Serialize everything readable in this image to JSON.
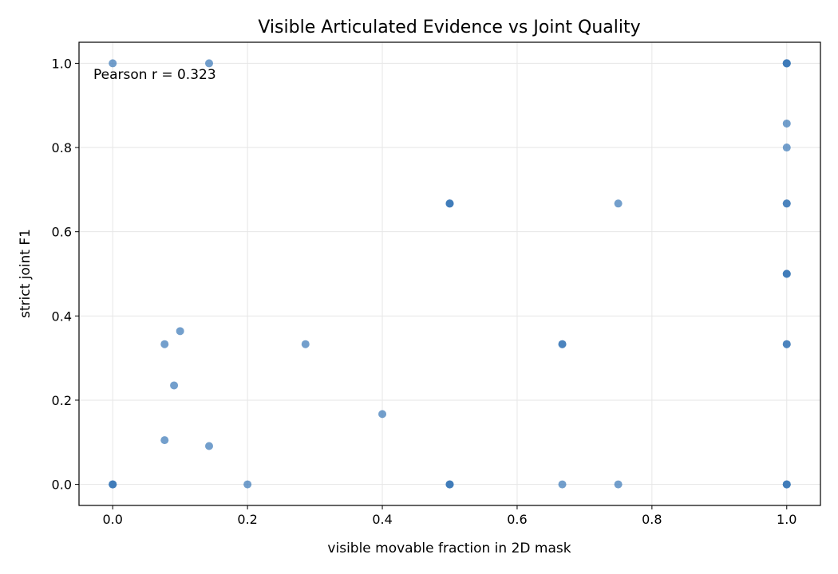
{
  "chart_data": {
    "type": "scatter",
    "title": "Visible Articulated Evidence vs Joint Quality",
    "xlabel": "visible movable fraction in 2D mask",
    "ylabel": "strict joint F1",
    "xlim": [
      -0.05,
      1.05
    ],
    "ylim": [
      -0.05,
      1.05
    ],
    "xticks": [
      0.0,
      0.2,
      0.4,
      0.6,
      0.8,
      1.0
    ],
    "yticks": [
      0.0,
      0.2,
      0.4,
      0.6,
      0.8,
      1.0
    ],
    "xtick_labels": [
      "0.0",
      "0.2",
      "0.4",
      "0.6",
      "0.8",
      "1.0"
    ],
    "ytick_labels": [
      "0.0",
      "0.2",
      "0.4",
      "0.6",
      "0.8",
      "1.0"
    ],
    "grid": true,
    "annotation": "Pearson r = 0.323",
    "marker_color": "#3d7ab8",
    "points": [
      {
        "x": 0.0,
        "y": 1.0
      },
      {
        "x": 0.143,
        "y": 1.0
      },
      {
        "x": 0.0,
        "y": 0.0
      },
      {
        "x": 0.0,
        "y": 0.0
      },
      {
        "x": 0.0,
        "y": 0.0
      },
      {
        "x": 0.077,
        "y": 0.333
      },
      {
        "x": 0.1,
        "y": 0.364
      },
      {
        "x": 0.091,
        "y": 0.235
      },
      {
        "x": 0.077,
        "y": 0.105
      },
      {
        "x": 0.143,
        "y": 0.091
      },
      {
        "x": 0.2,
        "y": 0.0
      },
      {
        "x": 0.286,
        "y": 0.333
      },
      {
        "x": 0.4,
        "y": 0.167
      },
      {
        "x": 0.5,
        "y": 0.667
      },
      {
        "x": 0.5,
        "y": 0.667
      },
      {
        "x": 0.5,
        "y": 0.667
      },
      {
        "x": 0.5,
        "y": 0.0
      },
      {
        "x": 0.5,
        "y": 0.0
      },
      {
        "x": 0.5,
        "y": 0.0
      },
      {
        "x": 0.667,
        "y": 0.333
      },
      {
        "x": 0.667,
        "y": 0.333
      },
      {
        "x": 0.667,
        "y": 0.0
      },
      {
        "x": 0.75,
        "y": 0.667
      },
      {
        "x": 0.75,
        "y": 0.0
      },
      {
        "x": 1.0,
        "y": 1.0
      },
      {
        "x": 1.0,
        "y": 1.0
      },
      {
        "x": 1.0,
        "y": 1.0
      },
      {
        "x": 1.0,
        "y": 1.0
      },
      {
        "x": 1.0,
        "y": 0.857
      },
      {
        "x": 1.0,
        "y": 0.8
      },
      {
        "x": 1.0,
        "y": 0.667
      },
      {
        "x": 1.0,
        "y": 0.667
      },
      {
        "x": 1.0,
        "y": 0.5
      },
      {
        "x": 1.0,
        "y": 0.5
      },
      {
        "x": 1.0,
        "y": 0.5
      },
      {
        "x": 1.0,
        "y": 0.333
      },
      {
        "x": 1.0,
        "y": 0.333
      },
      {
        "x": 1.0,
        "y": 0.0
      },
      {
        "x": 1.0,
        "y": 0.0
      },
      {
        "x": 1.0,
        "y": 0.0
      }
    ]
  }
}
